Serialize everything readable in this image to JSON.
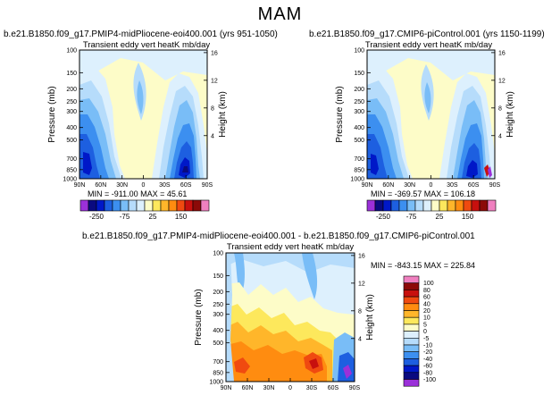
{
  "page_title": "MAM",
  "colors": {
    "purple": "#9b30d9",
    "navy": "#0a0a80",
    "darkblue": "#0018c8",
    "blue": "#1d5fe0",
    "midblue": "#3c8ff0",
    "lightblue": "#79bdf7",
    "paleblue": "#b6dcfb",
    "ice": "#ddf0fd",
    "cream": "#fdfcc8",
    "yellow": "#fde85c",
    "orange": "#ffb62a",
    "darkorange": "#ff8c10",
    "red": "#f04a10",
    "crimson": "#c8100e",
    "darkred": "#8c0a08",
    "pink": "#f080c0"
  },
  "chart_data": [
    {
      "type": "contour",
      "name": "panel-top-left",
      "case_title": "b.e21.B1850.f09_g17.PMIP4-midPliocene-eoi400.001  (yrs 951-1050)",
      "title": "Transient eddy vert heatK mb/day",
      "xlabel": "",
      "ylabel": "Pressure (mb)",
      "ylabel_right": "Height (km)",
      "x_ticks": [
        "90N",
        "60N",
        "30N",
        "0",
        "30S",
        "60S",
        "90S"
      ],
      "y_ticks": [
        "100",
        "150",
        "200",
        "250",
        "300",
        "400",
        "500",
        "700",
        "850",
        "1000"
      ],
      "y_ticks_right": [
        "16",
        "12",
        "8",
        "4"
      ],
      "stats": {
        "min": "-911.00",
        "max": "45.61"
      },
      "stats_text": "MIN = -911.00   MAX = 45.61",
      "colorbar_labels": [
        "-250",
        "-75",
        "25",
        "150"
      ]
    },
    {
      "type": "contour",
      "name": "panel-top-right",
      "case_title": "b.e21.B1850.f09_g17.CMIP6-piControl.001  (yrs 1150-1199)",
      "title": "Transient eddy vert heatK mb/day",
      "xlabel": "",
      "ylabel": "Pressure (mb)",
      "ylabel_right": "Height (km)",
      "x_ticks": [
        "90N",
        "60N",
        "30N",
        "0",
        "30S",
        "60S",
        "90S"
      ],
      "y_ticks": [
        "100",
        "150",
        "200",
        "250",
        "300",
        "400",
        "500",
        "700",
        "850",
        "1000"
      ],
      "y_ticks_right": [
        "16",
        "12",
        "8",
        "4"
      ],
      "stats": {
        "min": "-369.57",
        "max": "106.18"
      },
      "stats_text": "MIN = -369.57   MAX = 106.18",
      "colorbar_labels": [
        "-250",
        "-75",
        "25",
        "150"
      ]
    },
    {
      "type": "contour",
      "name": "panel-difference",
      "case_title": "b.e21.B1850.f09_g17.PMIP4-midPliocene-eoi400.001  -  b.e21.B1850.f09_g17.CMIP6-piControl.001",
      "title": "Transient eddy vert heatK mb/day",
      "xlabel": "",
      "ylabel": "Pressure (mb)",
      "ylabel_right": "Height (km)",
      "x_ticks": [
        "90N",
        "60N",
        "30N",
        "0",
        "30S",
        "60S",
        "90S"
      ],
      "y_ticks": [
        "100",
        "150",
        "200",
        "250",
        "300",
        "400",
        "500",
        "700",
        "850",
        "1000"
      ],
      "y_ticks_right": [
        "16",
        "12",
        "8",
        "4"
      ],
      "stats": {
        "min": "-843.15",
        "max": "225.84"
      },
      "stats_text": "MIN = -843.15   MAX = 225.84",
      "colorbar_labels": [
        "100",
        "80",
        "60",
        "40",
        "20",
        "10",
        "5",
        "0",
        "-5",
        "-10",
        "-20",
        "-40",
        "-60",
        "-80",
        "-100"
      ]
    }
  ]
}
